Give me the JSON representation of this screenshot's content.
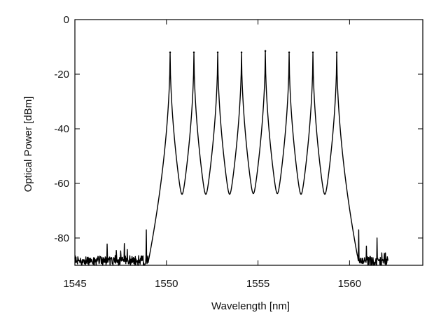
{
  "chart_data": {
    "type": "line",
    "title": "",
    "xlabel": "Wavelength [nm]",
    "ylabel": "Optical Power [dBm]",
    "xlim": [
      1545,
      1564
    ],
    "ylim": [
      -90,
      0
    ],
    "x_ticks": [
      1545,
      1550,
      1555,
      1560
    ],
    "y_ticks": [
      0,
      -20,
      -40,
      -60,
      -80
    ],
    "grid": false,
    "legend": "none",
    "line_color": "#000000",
    "noise_floor_dBm": -88,
    "series": [
      {
        "peaks": [
          {
            "wavelength_nm": 1550.2,
            "power_dBm": -12
          },
          {
            "wavelength_nm": 1551.5,
            "power_dBm": -12
          },
          {
            "wavelength_nm": 1552.8,
            "power_dBm": -12
          },
          {
            "wavelength_nm": 1554.1,
            "power_dBm": -12
          },
          {
            "wavelength_nm": 1555.4,
            "power_dBm": -11.5
          },
          {
            "wavelength_nm": 1556.7,
            "power_dBm": -12
          },
          {
            "wavelength_nm": 1558.0,
            "power_dBm": -12
          },
          {
            "wavelength_nm": 1559.3,
            "power_dBm": -12
          }
        ],
        "side_spikes": [
          {
            "wavelength_nm": 1547.7,
            "power_dBm": -82
          },
          {
            "wavelength_nm": 1548.9,
            "power_dBm": -77
          },
          {
            "wavelength_nm": 1560.5,
            "power_dBm": -77
          },
          {
            "wavelength_nm": 1561.5,
            "power_dBm": -80
          }
        ]
      }
    ]
  }
}
